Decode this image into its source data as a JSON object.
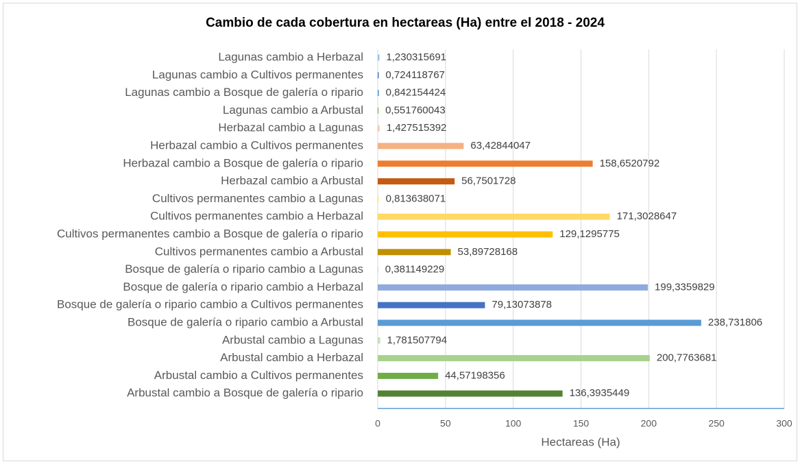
{
  "chart_data": {
    "type": "bar",
    "orientation": "horizontal",
    "title": "Cambio de cada cobertura en hectareas (Ha) entre el 2018 - 2024",
    "x_label": "Hectareas (Ha)",
    "categories": [
      "Lagunas cambio a Herbazal",
      "Lagunas cambio a Cultivos permanentes",
      "Lagunas cambio a Bosque de galería o ripario",
      "Lagunas cambio a Arbustal",
      "Herbazal cambio a Lagunas",
      "Herbazal cambio a Cultivos permanentes",
      "Herbazal cambio a Bosque de galería o ripario",
      "Herbazal cambio a Arbustal",
      "Cultivos permanentes cambio a Lagunas",
      "Cultivos permanentes cambio a Herbazal",
      "Cultivos permanentes cambio a Bosque de galería o ripario",
      "Cultivos permanentes cambio a Arbustal",
      "Bosque de galería o ripario cambio a Lagunas",
      "Bosque de galería o ripario cambio a Herbazal",
      "Bosque de galería o ripario cambio a Cultivos permanentes",
      "Bosque de galería o ripario cambio a Arbustal",
      "Arbustal cambio a Lagunas",
      "Arbustal cambio a Herbazal",
      "Arbustal cambio a Cultivos permanentes",
      "Arbustal cambio a Bosque de galería o ripario"
    ],
    "values": [
      1.230315691,
      0.724118767,
      0.842154424,
      0.551760043,
      1.427515392,
      63.42844047,
      158.6520792,
      56.7501728,
      0.813638071,
      171.3028647,
      129.1295775,
      53.89728168,
      0.381149229,
      199.3359829,
      79.13073878,
      238.731806,
      1.781507794,
      200.7763681,
      44.57198356,
      136.3935449
    ],
    "value_labels": [
      "1,230315691",
      "0,724118767",
      "0,842154424",
      "0,551760043",
      "1,427515392",
      "63,42844047",
      "158,6520792",
      "56,7501728",
      "0,813638071",
      "171,3028647",
      "129,1295775",
      "53,89728168",
      "0,381149229",
      "199,3359829",
      "79,13073878",
      "238,731806",
      "1,781507794",
      "200,7763681",
      "44,57198356",
      "136,3935449"
    ],
    "colors": [
      "#9dc3e6",
      "#4472c4",
      "#5b9bd5",
      "#70ad47",
      "#f8cbad",
      "#f4b183",
      "#ed7d31",
      "#c55a11",
      "#ffe699",
      "#ffd966",
      "#ffc000",
      "#bf9000",
      "#b4c7e7",
      "#8faadc",
      "#4472c4",
      "#5b9bd5",
      "#c5e0b4",
      "#a9d18e",
      "#70ad47",
      "#548235"
    ],
    "xlim": [
      0,
      300
    ],
    "xticks": [
      0,
      50,
      100,
      150,
      200,
      250,
      300
    ],
    "grid": true
  }
}
